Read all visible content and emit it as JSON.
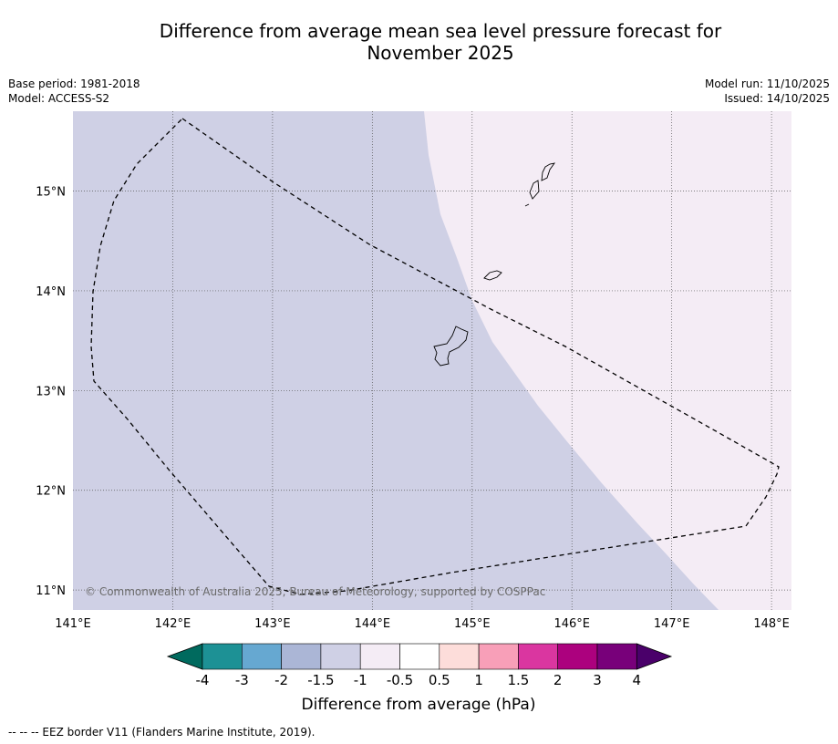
{
  "title": {
    "line1": "Difference from average mean sea level pressure forecast for",
    "line2": "November 2025"
  },
  "meta_left": {
    "base_period": "Base period: 1981-2018",
    "model": "Model: ACCESS-S2"
  },
  "meta_right": {
    "model_run": "Model run: 11/10/2025",
    "issued": "Issued: 14/10/2025"
  },
  "map": {
    "lon_range": [
      141.0,
      148.2
    ],
    "lat_range": [
      10.8,
      15.8
    ],
    "lon_ticks": [
      "141°E",
      "142°E",
      "143°E",
      "144°E",
      "145°E",
      "146°E",
      "147°E",
      "148°E"
    ],
    "lat_ticks": [
      "11°N",
      "12°N",
      "13°N",
      "14°N",
      "15°N"
    ],
    "copyright": "© Commonwealth of Australia 2025, Bureau of Meteorology, supported by COSPPac",
    "colors": {
      "band_minus_1.5_to_minus_1": "#cfd0e5",
      "band_minus_1_to_minus_0.5": "#f4ecf5"
    }
  },
  "colorbar": {
    "tick_labels": [
      "-4",
      "-3",
      "-2",
      "-1.5",
      "-1",
      "-0.5",
      "0.5",
      "1",
      "1.5",
      "2",
      "3",
      "4"
    ],
    "colors": [
      "#006a5e",
      "#1d9195",
      "#66a8d1",
      "#abb6d6",
      "#cfd0e5",
      "#f4ecf5",
      "#ffffff",
      "#fdddda",
      "#f89fb8",
      "#da36a0",
      "#ac017e",
      "#78007a",
      "#4a006a"
    ],
    "label": "Difference from average (hPa)"
  },
  "footnote": "--  --  -- EEZ border V11 (Flanders Marine Institute, 2019)."
}
